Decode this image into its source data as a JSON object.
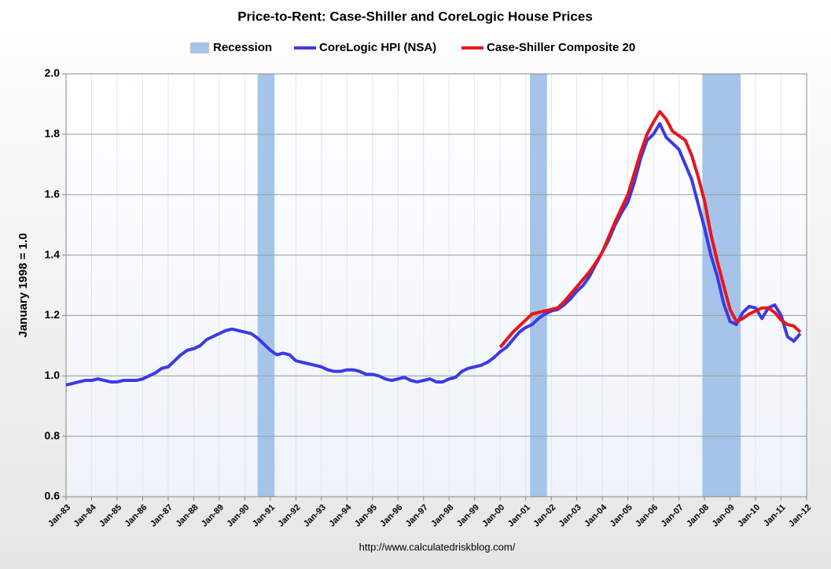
{
  "chart_data": {
    "type": "line",
    "title": "Price-to-Rent: Case-Shiller and CoreLogic House Prices",
    "y_label": "January 1998 = 1.0",
    "source": "http://www.calculatedriskblog.com/",
    "recession": {
      "name": "Recession",
      "color": "#a6c4e9",
      "periods": [
        [
          "Jul-90",
          "Mar-91"
        ],
        [
          "Mar-01",
          "Nov-01"
        ],
        [
          "Dec-07",
          "Jun-09"
        ]
      ]
    },
    "x": [
      "Jan-83",
      "Apr-83",
      "Jul-83",
      "Oct-83",
      "Jan-84",
      "Apr-84",
      "Jul-84",
      "Oct-84",
      "Jan-85",
      "Apr-85",
      "Jul-85",
      "Oct-85",
      "Jan-86",
      "Apr-86",
      "Jul-86",
      "Oct-86",
      "Jan-87",
      "Apr-87",
      "Jul-87",
      "Oct-87",
      "Jan-88",
      "Apr-88",
      "Jul-88",
      "Oct-88",
      "Jan-89",
      "Apr-89",
      "Jul-89",
      "Oct-89",
      "Jan-90",
      "Apr-90",
      "Jul-90",
      "Oct-90",
      "Jan-91",
      "Apr-91",
      "Jul-91",
      "Oct-91",
      "Jan-92",
      "Apr-92",
      "Jul-92",
      "Oct-92",
      "Jan-93",
      "Apr-93",
      "Jul-93",
      "Oct-93",
      "Jan-94",
      "Apr-94",
      "Jul-94",
      "Oct-94",
      "Jan-95",
      "Apr-95",
      "Jul-95",
      "Oct-95",
      "Jan-96",
      "Apr-96",
      "Jul-96",
      "Oct-96",
      "Jan-97",
      "Apr-97",
      "Jul-97",
      "Oct-97",
      "Jan-98",
      "Apr-98",
      "Jul-98",
      "Oct-98",
      "Jan-99",
      "Apr-99",
      "Jul-99",
      "Oct-99",
      "Jan-00",
      "Apr-00",
      "Jul-00",
      "Oct-00",
      "Jan-01",
      "Apr-01",
      "Jul-01",
      "Oct-01",
      "Jan-02",
      "Apr-02",
      "Jul-02",
      "Oct-02",
      "Jan-03",
      "Apr-03",
      "Jul-03",
      "Oct-03",
      "Jan-04",
      "Apr-04",
      "Jul-04",
      "Oct-04",
      "Jan-05",
      "Apr-05",
      "Jul-05",
      "Oct-05",
      "Jan-06",
      "Apr-06",
      "Jul-06",
      "Oct-06",
      "Jan-07",
      "Apr-07",
      "Jul-07",
      "Oct-07",
      "Jan-08",
      "Apr-08",
      "Jul-08",
      "Oct-08",
      "Jan-09",
      "Apr-09",
      "Jul-09",
      "Oct-09",
      "Jan-10",
      "Apr-10",
      "Jul-10",
      "Oct-10",
      "Jan-11",
      "Apr-11",
      "Jul-11",
      "Oct-11"
    ],
    "series": [
      {
        "name": "CoreLogic HPI (NSA)",
        "color": "#3a3ae6",
        "values": [
          0.97,
          0.975,
          0.98,
          0.985,
          0.985,
          0.99,
          0.985,
          0.98,
          0.98,
          0.985,
          0.985,
          0.985,
          0.99,
          1.0,
          1.01,
          1.025,
          1.03,
          1.05,
          1.07,
          1.085,
          1.09,
          1.1,
          1.12,
          1.13,
          1.14,
          1.15,
          1.155,
          1.15,
          1.145,
          1.14,
          1.125,
          1.105,
          1.085,
          1.07,
          1.075,
          1.07,
          1.05,
          1.045,
          1.04,
          1.035,
          1.03,
          1.02,
          1.015,
          1.015,
          1.02,
          1.02,
          1.015,
          1.005,
          1.005,
          1.0,
          0.99,
          0.985,
          0.99,
          0.995,
          0.985,
          0.98,
          0.985,
          0.99,
          0.98,
          0.98,
          0.99,
          0.995,
          1.015,
          1.025,
          1.03,
          1.035,
          1.045,
          1.06,
          1.08,
          1.095,
          1.12,
          1.145,
          1.16,
          1.17,
          1.19,
          1.205,
          1.215,
          1.22,
          1.235,
          1.255,
          1.28,
          1.3,
          1.33,
          1.37,
          1.41,
          1.45,
          1.5,
          1.54,
          1.575,
          1.64,
          1.72,
          1.78,
          1.8,
          1.835,
          1.79,
          1.77,
          1.75,
          1.7,
          1.65,
          1.57,
          1.49,
          1.4,
          1.33,
          1.24,
          1.18,
          1.17,
          1.21,
          1.23,
          1.225,
          1.19,
          1.225,
          1.235,
          1.2,
          1.13,
          1.115,
          1.14
        ]
      },
      {
        "name": "Case-Shiller Composite 20",
        "color": "#e8151b",
        "values": [
          null,
          null,
          null,
          null,
          null,
          null,
          null,
          null,
          null,
          null,
          null,
          null,
          null,
          null,
          null,
          null,
          null,
          null,
          null,
          null,
          null,
          null,
          null,
          null,
          null,
          null,
          null,
          null,
          null,
          null,
          null,
          null,
          null,
          null,
          null,
          null,
          null,
          null,
          null,
          null,
          null,
          null,
          null,
          null,
          null,
          null,
          null,
          null,
          null,
          null,
          null,
          null,
          null,
          null,
          null,
          null,
          null,
          null,
          null,
          null,
          null,
          null,
          null,
          null,
          null,
          null,
          null,
          null,
          1.095,
          1.12,
          1.145,
          1.165,
          1.185,
          1.205,
          1.21,
          1.215,
          1.22,
          1.225,
          1.245,
          1.27,
          1.295,
          1.32,
          1.345,
          1.375,
          1.41,
          1.46,
          1.51,
          1.555,
          1.6,
          1.67,
          1.74,
          1.8,
          1.84,
          1.875,
          1.85,
          1.81,
          1.795,
          1.78,
          1.73,
          1.66,
          1.58,
          1.47,
          1.38,
          1.3,
          1.22,
          1.18,
          1.19,
          1.205,
          1.215,
          1.225,
          1.225,
          1.21,
          1.185,
          1.17,
          1.165,
          1.145
        ]
      }
    ],
    "xlim": [
      "Jan-83",
      "Jan-12"
    ],
    "xticks": [
      "Jan-83",
      "Jan-84",
      "Jan-85",
      "Jan-86",
      "Jan-87",
      "Jan-88",
      "Jan-89",
      "Jan-90",
      "Jan-91",
      "Jan-92",
      "Jan-93",
      "Jan-94",
      "Jan-95",
      "Jan-96",
      "Jan-97",
      "Jan-98",
      "Jan-99",
      "Jan-00",
      "Jan-01",
      "Jan-02",
      "Jan-03",
      "Jan-04",
      "Jan-05",
      "Jan-06",
      "Jan-07",
      "Jan-08",
      "Jan-09",
      "Jan-10",
      "Jan-11",
      "Jan-12"
    ],
    "ylim": [
      0.6,
      2.0
    ],
    "yticks": [
      0.6,
      0.8,
      {
        "value": 1.0,
        "label": "1.0"
      },
      1.2,
      1.4,
      1.6,
      1.8,
      {
        "value": 2.0,
        "label": "2.0"
      }
    ],
    "grid": true
  }
}
